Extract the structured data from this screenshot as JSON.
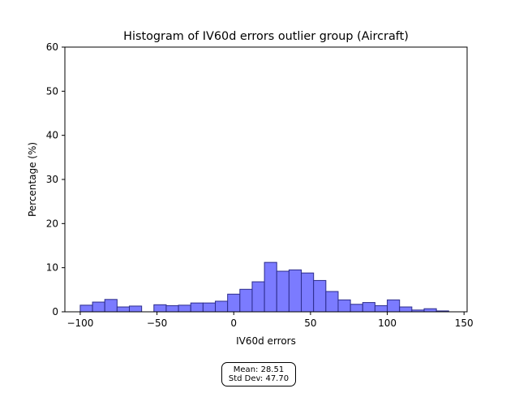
{
  "chart_data": {
    "type": "bar",
    "title": "Histogram of IV60d errors outlier group (Aircraft)",
    "xlabel": "IV60d errors",
    "ylabel": "Percentage (%)",
    "xlim": [
      -110,
      152
    ],
    "ylim": [
      0,
      60
    ],
    "xticks": [
      -100,
      -50,
      0,
      50,
      100,
      150
    ],
    "xtick_labels": [
      "−100",
      "−50",
      "0",
      "50",
      "100",
      "150"
    ],
    "yticks": [
      0,
      10,
      20,
      30,
      40,
      50,
      60
    ],
    "ytick_labels": [
      "0",
      "10",
      "20",
      "30",
      "40",
      "50",
      "60"
    ],
    "grid": false,
    "bar_color": "#7b7bff",
    "edge_color": "#2c2c8c",
    "bins": [
      {
        "start": -100,
        "end": -92,
        "value": 1.5
      },
      {
        "start": -92,
        "end": -84,
        "value": 2.2
      },
      {
        "start": -84,
        "end": -76,
        "value": 2.8
      },
      {
        "start": -76,
        "end": -68,
        "value": 1.1
      },
      {
        "start": -68,
        "end": -60,
        "value": 1.3
      },
      {
        "start": -52,
        "end": -44,
        "value": 1.6
      },
      {
        "start": -44,
        "end": -36,
        "value": 1.4
      },
      {
        "start": -36,
        "end": -28,
        "value": 1.5
      },
      {
        "start": -28,
        "end": -20,
        "value": 2.0
      },
      {
        "start": -20,
        "end": -12,
        "value": 2.0
      },
      {
        "start": -12,
        "end": -4,
        "value": 2.4
      },
      {
        "start": -4,
        "end": 4,
        "value": 4.0
      },
      {
        "start": 4,
        "end": 12,
        "value": 5.1
      },
      {
        "start": 12,
        "end": 20,
        "value": 6.8
      },
      {
        "start": 20,
        "end": 28,
        "value": 11.2
      },
      {
        "start": 28,
        "end": 36,
        "value": 9.2
      },
      {
        "start": 36,
        "end": 44,
        "value": 9.5
      },
      {
        "start": 44,
        "end": 52,
        "value": 8.8
      },
      {
        "start": 52,
        "end": 60,
        "value": 7.1
      },
      {
        "start": 60,
        "end": 68,
        "value": 4.6
      },
      {
        "start": 68,
        "end": 76,
        "value": 2.7
      },
      {
        "start": 76,
        "end": 84,
        "value": 1.7
      },
      {
        "start": 84,
        "end": 92,
        "value": 2.1
      },
      {
        "start": 92,
        "end": 100,
        "value": 1.4
      },
      {
        "start": 100,
        "end": 108,
        "value": 2.7
      },
      {
        "start": 108,
        "end": 116,
        "value": 1.1
      },
      {
        "start": 116,
        "end": 124,
        "value": 0.4
      },
      {
        "start": 124,
        "end": 132,
        "value": 0.7
      },
      {
        "start": 132,
        "end": 140,
        "value": 0.2
      }
    ]
  },
  "stats": {
    "mean_label": "Mean: 28.51",
    "std_label": "Std Dev: 47.70"
  }
}
